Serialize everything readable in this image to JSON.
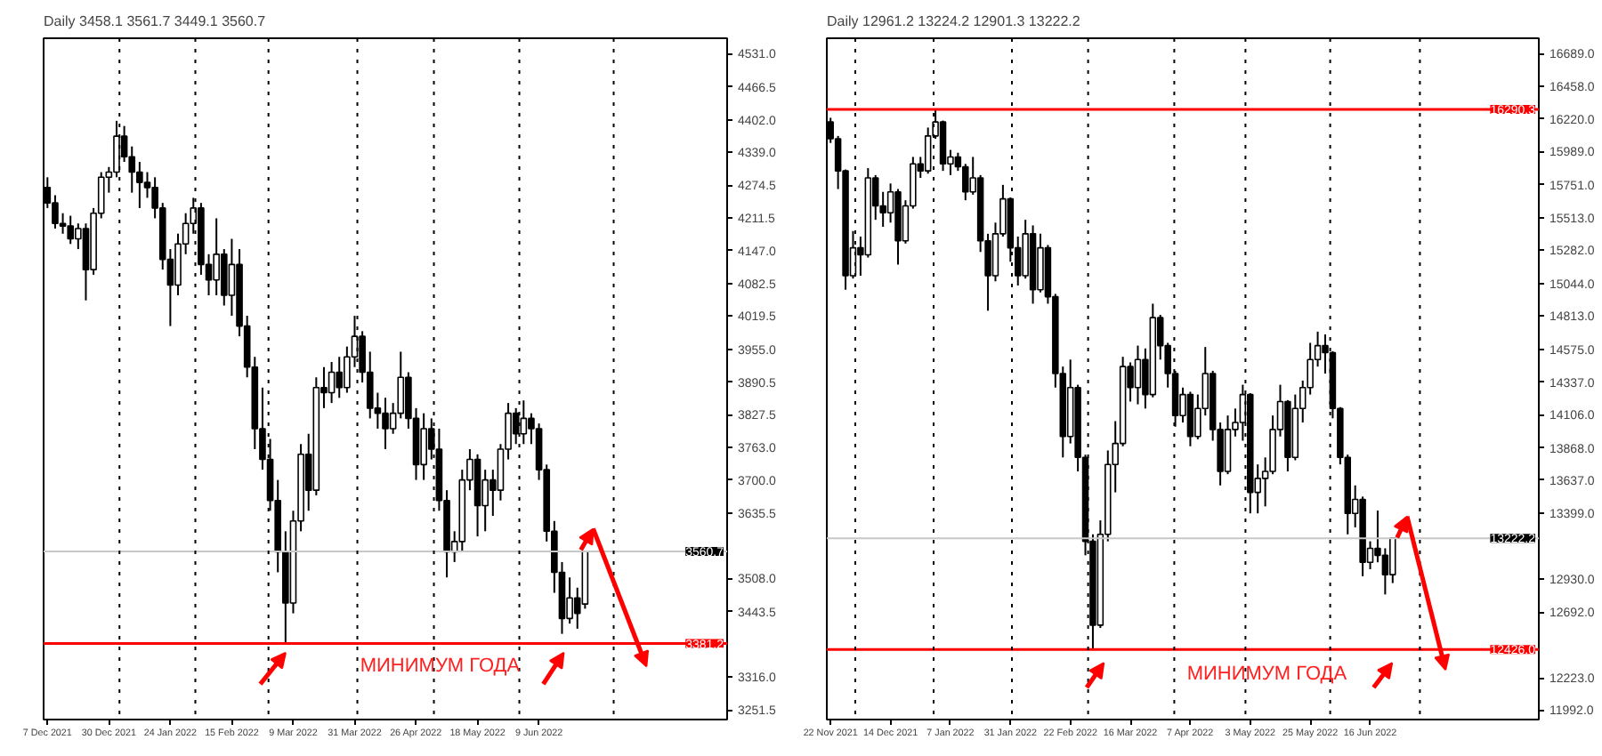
{
  "chart_data": [
    {
      "type": "candlestick",
      "title": "Daily  3458.1 3561.7 3449.1 3560.7",
      "color": "#000000",
      "grid": false,
      "categories": [
        "7 Dec 2021",
        null,
        null,
        null,
        null,
        null,
        null,
        null,
        "30 Dec 2021",
        null,
        null,
        null,
        null,
        null,
        null,
        null,
        "24 Jan 2022",
        null,
        null,
        null,
        null,
        null,
        null,
        null,
        "15 Feb 2022",
        null,
        null,
        null,
        null,
        null,
        null,
        null,
        "9 Mar 2022",
        null,
        null,
        null,
        null,
        null,
        null,
        null,
        "31 Mar 2022",
        null,
        null,
        null,
        null,
        null,
        null,
        null,
        "26 Apr 2022",
        null,
        null,
        null,
        null,
        null,
        null,
        null,
        "18 May 2022",
        null,
        null,
        null,
        null,
        null,
        null,
        null,
        "9 Jun 2022",
        null,
        null,
        null,
        null,
        null,
        null,
        null,
        null,
        null,
        null,
        null,
        null,
        null,
        null,
        null,
        null,
        null,
        null,
        null,
        null,
        null,
        null,
        null,
        null
      ],
      "ohlc": [
        [
          4270,
          4290,
          4230,
          4240
        ],
        [
          4240,
          4255,
          4190,
          4200
        ],
        [
          4200,
          4220,
          4180,
          4195
        ],
        [
          4195,
          4215,
          4160,
          4170
        ],
        [
          4170,
          4200,
          4150,
          4190
        ],
        [
          4190,
          4200,
          4050,
          4110
        ],
        [
          4110,
          4230,
          4100,
          4220
        ],
        [
          4220,
          4300,
          4210,
          4290
        ],
        [
          4290,
          4310,
          4260,
          4300
        ],
        [
          4300,
          4400,
          4290,
          4370
        ],
        [
          4370,
          4390,
          4320,
          4330
        ],
        [
          4330,
          4350,
          4260,
          4300
        ],
        [
          4300,
          4320,
          4230,
          4280
        ],
        [
          4280,
          4300,
          4250,
          4270
        ],
        [
          4270,
          4290,
          4210,
          4230
        ],
        [
          4230,
          4240,
          4110,
          4130
        ],
        [
          4130,
          4150,
          4000,
          4080
        ],
        [
          4080,
          4180,
          4060,
          4160
        ],
        [
          4160,
          4220,
          4140,
          4200
        ],
        [
          4200,
          4250,
          4180,
          4230
        ],
        [
          4230,
          4240,
          4100,
          4120
        ],
        [
          4120,
          4140,
          4060,
          4090
        ],
        [
          4090,
          4210,
          4060,
          4140
        ],
        [
          4140,
          4150,
          4040,
          4060
        ],
        [
          4060,
          4170,
          4020,
          4120
        ],
        [
          4120,
          4150,
          3980,
          4000
        ],
        [
          4000,
          4020,
          3900,
          3920
        ],
        [
          3920,
          3940,
          3760,
          3800
        ],
        [
          3800,
          3880,
          3720,
          3740
        ],
        [
          3740,
          3780,
          3640,
          3660
        ],
        [
          3660,
          3700,
          3520,
          3560
        ],
        [
          3560,
          3600,
          3381.2,
          3460
        ],
        [
          3460,
          3640,
          3440,
          3620
        ],
        [
          3620,
          3770,
          3600,
          3750
        ],
        [
          3750,
          3790,
          3640,
          3680
        ],
        [
          3680,
          3900,
          3670,
          3880
        ],
        [
          3880,
          3920,
          3840,
          3870
        ],
        [
          3870,
          3930,
          3850,
          3910
        ],
        [
          3910,
          3940,
          3860,
          3880
        ],
        [
          3880,
          3960,
          3870,
          3940
        ],
        [
          3940,
          4020,
          3920,
          3980
        ],
        [
          3980,
          3990,
          3890,
          3910
        ],
        [
          3910,
          3950,
          3820,
          3840
        ],
        [
          3840,
          3870,
          3800,
          3830
        ],
        [
          3830,
          3860,
          3760,
          3800
        ],
        [
          3800,
          3850,
          3790,
          3830
        ],
        [
          3830,
          3950,
          3820,
          3900
        ],
        [
          3900,
          3910,
          3800,
          3820
        ],
        [
          3820,
          3840,
          3700,
          3730
        ],
        [
          3730,
          3830,
          3700,
          3800
        ],
        [
          3800,
          3820,
          3740,
          3760
        ],
        [
          3760,
          3800,
          3640,
          3660
        ],
        [
          3660,
          3680,
          3510,
          3560
        ],
        [
          3560,
          3600,
          3540,
          3580
        ],
        [
          3580,
          3720,
          3560,
          3700
        ],
        [
          3700,
          3760,
          3680,
          3740
        ],
        [
          3740,
          3750,
          3590,
          3650
        ],
        [
          3650,
          3720,
          3600,
          3700
        ],
        [
          3700,
          3720,
          3630,
          3680
        ],
        [
          3680,
          3770,
          3660,
          3760
        ],
        [
          3760,
          3850,
          3740,
          3830
        ],
        [
          3830,
          3840,
          3770,
          3790
        ],
        [
          3790,
          3855,
          3770,
          3820
        ],
        [
          3820,
          3830,
          3770,
          3800
        ],
        [
          3800,
          3810,
          3700,
          3720
        ],
        [
          3720,
          3730,
          3580,
          3600
        ],
        [
          3600,
          3620,
          3480,
          3520
        ],
        [
          3520,
          3540,
          3400,
          3430
        ],
        [
          3430,
          3510,
          3420,
          3470
        ],
        [
          3470,
          3490,
          3410,
          3440
        ],
        [
          3458.1,
          3561.7,
          3449.1,
          3560.7
        ],
        null,
        null,
        null,
        null,
        null,
        null,
        null,
        null,
        null,
        null,
        null,
        null,
        null,
        null,
        null,
        null,
        null,
        null
      ],
      "ylim": [
        3233,
        4561
      ],
      "yticks": [
        {
          "value": 4531,
          "label": "4531.0"
        },
        {
          "value": 4466.5,
          "label": "4466.5"
        },
        {
          "value": 4402,
          "label": "4402.0"
        },
        {
          "value": 4339,
          "label": "4339.0"
        },
        {
          "value": 4274.5,
          "label": "4274.5"
        },
        {
          "value": 4211.5,
          "label": "4211.5"
        },
        {
          "value": 4147,
          "label": "4147.0"
        },
        {
          "value": 4082.5,
          "label": "4082.5"
        },
        {
          "value": 4019.5,
          "label": "4019.5"
        },
        {
          "value": 3955,
          "label": "3955.0"
        },
        {
          "value": 3890.5,
          "label": "3890.5"
        },
        {
          "value": 3827.5,
          "label": "3827.5"
        },
        {
          "value": 3763,
          "label": "3763.0"
        },
        {
          "value": 3700,
          "label": "3700.0"
        },
        {
          "value": 3635.5,
          "label": "3635.5"
        },
        {
          "value": 3508,
          "label": "3508.0"
        },
        {
          "value": 3443.5,
          "label": "3443.5"
        },
        {
          "value": 3316,
          "label": "3316.0"
        },
        {
          "value": 3251.5,
          "label": "3251.5"
        }
      ],
      "ref_lines": [
        {
          "axis": "y",
          "value": 3560.7,
          "label": "3560.7",
          "color": "#c8c8c8"
        },
        {
          "axis": "y",
          "value": 3381.2,
          "label": "3381.2",
          "color": "#ff0000"
        }
      ],
      "annotations": [
        "МИНИМУМ ГОДА"
      ]
    },
    {
      "type": "candlestick",
      "title": "Daily  12961.2 13224.2 12901.3 13222.2",
      "color": "#000000",
      "grid": false,
      "categories": [
        "22 Nov 2021",
        null,
        null,
        null,
        null,
        null,
        null,
        null,
        "14 Dec 2021",
        null,
        null,
        null,
        null,
        null,
        null,
        null,
        "7 Jan 2022",
        null,
        null,
        null,
        null,
        null,
        null,
        null,
        "31 Jan 2022",
        null,
        null,
        null,
        null,
        null,
        null,
        null,
        "22 Feb 2022",
        null,
        null,
        null,
        null,
        null,
        null,
        null,
        "16 Mar 2022",
        null,
        null,
        null,
        null,
        null,
        null,
        null,
        "7 Apr 2022",
        null,
        null,
        null,
        null,
        null,
        null,
        null,
        "3 May 2022",
        null,
        null,
        null,
        null,
        null,
        null,
        null,
        "25 May 2022",
        null,
        null,
        null,
        null,
        null,
        null,
        null,
        "16 Jun 2022",
        null,
        null,
        null,
        null,
        null,
        null,
        null,
        null,
        null,
        null,
        null,
        null,
        null,
        null,
        null,
        null,
        null,
        null,
        null,
        null,
        null,
        null
      ],
      "ohlc": [
        [
          16200,
          16230,
          16050,
          16080
        ],
        [
          16080,
          16100,
          15720,
          15850
        ],
        [
          15850,
          15860,
          15000,
          15100
        ],
        [
          15100,
          15420,
          15080,
          15300
        ],
        [
          15300,
          15380,
          15100,
          15250
        ],
        [
          15250,
          15870,
          15230,
          15800
        ],
        [
          15800,
          15820,
          15500,
          15600
        ],
        [
          15600,
          15700,
          15450,
          15550
        ],
        [
          15550,
          15760,
          15480,
          15700
        ],
        [
          15700,
          15720,
          15180,
          15350
        ],
        [
          15350,
          15640,
          15330,
          15600
        ],
        [
          15600,
          15950,
          15580,
          15900
        ],
        [
          15900,
          15950,
          15800,
          15850
        ],
        [
          15850,
          16160,
          15830,
          16100
        ],
        [
          16100,
          16290,
          16080,
          16200
        ],
        [
          16200,
          16210,
          15850,
          15900
        ],
        [
          15900,
          16000,
          15820,
          15950
        ],
        [
          15950,
          15980,
          15850,
          15880
        ],
        [
          15880,
          15900,
          15640,
          15700
        ],
        [
          15700,
          15950,
          15680,
          15800
        ],
        [
          15800,
          15820,
          15270,
          15350
        ],
        [
          15350,
          15400,
          14850,
          15100
        ],
        [
          15100,
          15480,
          15060,
          15400
        ],
        [
          15400,
          15750,
          15380,
          15650
        ],
        [
          15650,
          15660,
          15200,
          15300
        ],
        [
          15300,
          15380,
          15030,
          15100
        ],
        [
          15100,
          15500,
          15080,
          15400
        ],
        [
          15400,
          15460,
          14900,
          15000
        ],
        [
          15000,
          15400,
          14980,
          15300
        ],
        [
          15300,
          15320,
          14900,
          14950
        ],
        [
          14950,
          14970,
          14300,
          14400
        ],
        [
          14400,
          14450,
          13800,
          13950
        ],
        [
          13950,
          14500,
          13900,
          14300
        ],
        [
          14300,
          14320,
          13700,
          13800
        ],
        [
          13800,
          13820,
          13100,
          13200
        ],
        [
          13200,
          13250,
          12430,
          12600
        ],
        [
          12600,
          13350,
          12580,
          13250
        ],
        [
          13250,
          13850,
          13200,
          13750
        ],
        [
          13750,
          14060,
          13550,
          13900
        ],
        [
          13900,
          14520,
          13880,
          14450
        ],
        [
          14450,
          14480,
          14200,
          14300
        ],
        [
          14300,
          14600,
          14180,
          14500
        ],
        [
          14500,
          14580,
          14150,
          14250
        ],
        [
          14250,
          14900,
          14230,
          14800
        ],
        [
          14800,
          14820,
          14500,
          14600
        ],
        [
          14600,
          14620,
          14300,
          14400
        ],
        [
          14400,
          14420,
          14020,
          14100
        ],
        [
          14100,
          14300,
          14050,
          14250
        ],
        [
          14250,
          14270,
          13880,
          13950
        ],
        [
          13950,
          14250,
          13930,
          14150
        ],
        [
          14150,
          14590,
          14100,
          14400
        ],
        [
          14400,
          14420,
          13920,
          14000
        ],
        [
          14000,
          14050,
          13600,
          13700
        ],
        [
          13700,
          14100,
          13680,
          14000
        ],
        [
          14000,
          14150,
          13950,
          14050
        ],
        [
          14050,
          14320,
          13920,
          14250
        ],
        [
          14250,
          14260,
          13400,
          13550
        ],
        [
          13550,
          13750,
          13400,
          13650
        ],
        [
          13650,
          13800,
          13450,
          13700
        ],
        [
          13700,
          14100,
          13680,
          14000
        ],
        [
          14000,
          14320,
          13950,
          14200
        ],
        [
          14200,
          14210,
          13700,
          13800
        ],
        [
          13800,
          14250,
          13780,
          14150
        ],
        [
          14150,
          14350,
          14050,
          14300
        ],
        [
          14300,
          14620,
          14250,
          14500
        ],
        [
          14500,
          14700,
          14450,
          14600
        ],
        [
          14600,
          14680,
          14400,
          14550
        ],
        [
          14550,
          14560,
          14080,
          14150
        ],
        [
          14150,
          14160,
          13750,
          13800
        ],
        [
          13800,
          13820,
          13250,
          13400
        ],
        [
          13400,
          13600,
          13300,
          13500
        ],
        [
          13500,
          13520,
          12950,
          13050
        ],
        [
          13050,
          13200,
          13000,
          13150
        ],
        [
          13150,
          13420,
          13050,
          13100
        ],
        [
          13100,
          13150,
          12820,
          12961.2
        ],
        [
          12961.2,
          13224.2,
          12901.3,
          13222.2
        ],
        null,
        null,
        null,
        null,
        null,
        null,
        null,
        null,
        null,
        null,
        null,
        null,
        null,
        null,
        null,
        null,
        null,
        null,
        null
      ],
      "ylim": [
        11925,
        16799
      ],
      "yticks": [
        {
          "value": 16689,
          "label": "16689.0"
        },
        {
          "value": 16458,
          "label": "16458.0"
        },
        {
          "value": 16220,
          "label": "16220.0"
        },
        {
          "value": 15989,
          "label": "15989.0"
        },
        {
          "value": 15751,
          "label": "15751.0"
        },
        {
          "value": 15513,
          "label": "15513.0"
        },
        {
          "value": 15282,
          "label": "15282.0"
        },
        {
          "value": 15044,
          "label": "15044.0"
        },
        {
          "value": 14813,
          "label": "14813.0"
        },
        {
          "value": 14575,
          "label": "14575.0"
        },
        {
          "value": 14337,
          "label": "14337.0"
        },
        {
          "value": 14106,
          "label": "14106.0"
        },
        {
          "value": 13868,
          "label": "13868.0"
        },
        {
          "value": 13637,
          "label": "13637.0"
        },
        {
          "value": 13399,
          "label": "13399.0"
        },
        {
          "value": 12930,
          "label": "12930.0"
        },
        {
          "value": 12692,
          "label": "12692.0"
        },
        {
          "value": 12223,
          "label": "12223.0"
        },
        {
          "value": 11992,
          "label": "11992.0"
        }
      ],
      "ref_lines": [
        {
          "axis": "y",
          "value": 16290.3,
          "label": "16290.3",
          "color": "#ff0000"
        },
        {
          "axis": "y",
          "value": 13222.2,
          "label": "13222.2",
          "color": "#c8c8c8"
        },
        {
          "axis": "y",
          "value": 12426.0,
          "label": "12426.0",
          "color": "#ff0000"
        }
      ],
      "annotations": [
        "МИНИМУМ ГОДА"
      ]
    }
  ]
}
